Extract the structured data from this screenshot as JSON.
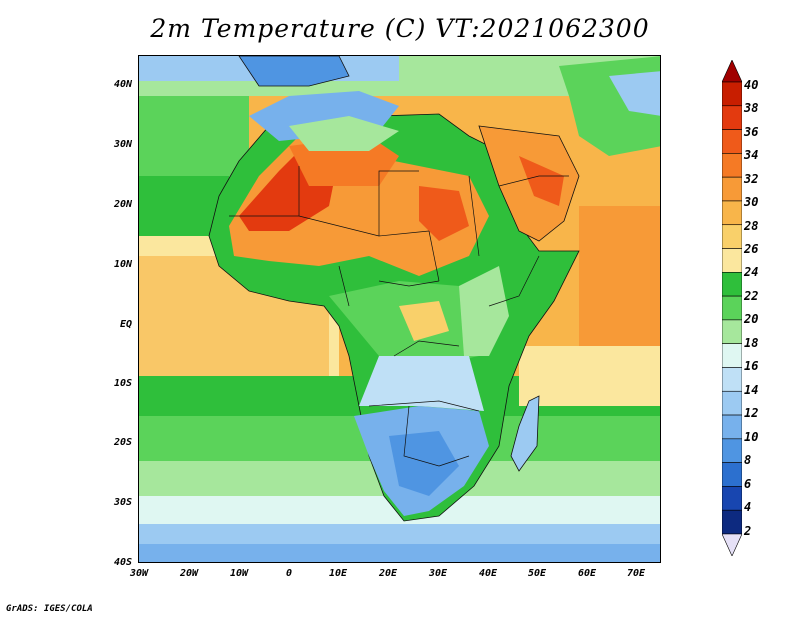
{
  "title": "2m Temperature (C) VT:2021062300",
  "credit": "GrADS: IGES/COLA",
  "map": {
    "lat_labels": [
      "40N",
      "30N",
      "20N",
      "10N",
      "EQ",
      "10S",
      "20S",
      "30S",
      "40S"
    ],
    "lon_labels": [
      "30W",
      "20W",
      "10W",
      "0",
      "10E",
      "20E",
      "30E",
      "40E",
      "50E",
      "60E",
      "70E"
    ],
    "lat_range": [
      -40,
      45
    ],
    "lon_range": [
      -30,
      75
    ]
  },
  "colorbar": {
    "labels": [
      "40",
      "38",
      "36",
      "34",
      "32",
      "30",
      "28",
      "26",
      "24",
      "22",
      "20",
      "18",
      "16",
      "14",
      "12",
      "10",
      "8",
      "6",
      "4",
      "2"
    ],
    "colors": [
      "#a00000",
      "#c81e00",
      "#e33a0f",
      "#ef5a1a",
      "#f57a25",
      "#f79a37",
      "#f8b54a",
      "#f9d06a",
      "#fbe79e",
      "#2fbf3b",
      "#5bd35a",
      "#a6e79c",
      "#dff7f2",
      "#bfe0f6",
      "#9ccaf2",
      "#77b1ec",
      "#4f95e2",
      "#2c70cf",
      "#1846b0",
      "#0d2a80",
      "#e6e1f7"
    ]
  }
}
